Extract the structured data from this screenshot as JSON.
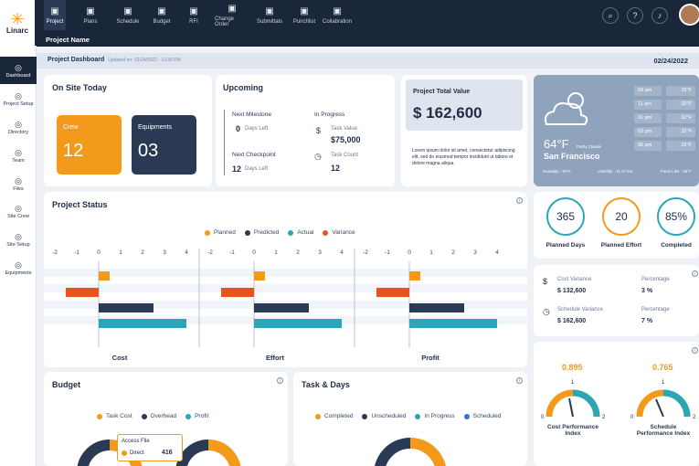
{
  "app": {
    "logo_text": "Linarc",
    "project_label": "Project Name"
  },
  "nav": [
    {
      "label": "Project",
      "icon": "grid-icon"
    },
    {
      "label": "Plans",
      "icon": "plans-icon"
    },
    {
      "label": "Schedule",
      "icon": "schedule-icon"
    },
    {
      "label": "Budget",
      "icon": "budget-icon"
    },
    {
      "label": "RFI",
      "icon": "rfi-icon"
    },
    {
      "label": "Change Order",
      "icon": "change-order-icon"
    },
    {
      "label": "Submittals",
      "icon": "submittals-icon"
    },
    {
      "label": "Punchlist",
      "icon": "punchlist-icon"
    },
    {
      "label": "Collabration",
      "icon": "collaboration-icon"
    }
  ],
  "sidebar": [
    {
      "label": "Dashboard",
      "icon": "gauge-icon"
    },
    {
      "label": "Project Setup",
      "icon": "tools-icon"
    },
    {
      "label": "Directory",
      "icon": "directory-icon"
    },
    {
      "label": "Team",
      "icon": "team-icon"
    },
    {
      "label": "Files",
      "icon": "files-icon"
    },
    {
      "label": "Site Crew",
      "icon": "site-crew-icon"
    },
    {
      "label": "Site Setup",
      "icon": "site-setup-icon"
    },
    {
      "label": "Equipments",
      "icon": "equipments-icon"
    }
  ],
  "header": {
    "title": "Project Dashboard",
    "updated": "Updated on: 02/24/2022 - 10:30 PM",
    "date": "02/24/2022"
  },
  "onsite": {
    "title": "On Site Today",
    "crew_label": "Crew",
    "crew_value": "12",
    "equip_label": "Equipments",
    "equip_value": "03"
  },
  "upcoming": {
    "title": "Upcoming",
    "milestone_label": "Next Milestone",
    "milestone_days": "0",
    "milestone_unit": "Days Left",
    "checkpoint_label": "Next Checkpoint",
    "checkpoint_days": "12",
    "checkpoint_unit": "Days Left",
    "progress_label": "In Progress",
    "task_value_label": "Task Value",
    "task_value": "$75,000",
    "task_count_label": "Task Count",
    "task_count": "12"
  },
  "total": {
    "label": "Project Total Value",
    "value": "$ 162,600",
    "note": "Lorem ipsum dolor sit amet, consectetur adipiscing elit, sed do eiusmod tempor incididunt ut labore et dolore magna aliqua."
  },
  "weather": {
    "temp": "64°F",
    "cond": "Partly Cloude",
    "city": "San Francisco",
    "humidity": "Humidity - 97%",
    "visibility": "Visibility - 11.27 km",
    "feels": "Feels Like : 55°F",
    "hours": [
      {
        "time": "09 am",
        "temp": "32°F"
      },
      {
        "time": "11 am",
        "temp": "32°F"
      },
      {
        "time": "01 pm",
        "temp": "32°F"
      },
      {
        "time": "03 pm",
        "temp": "32°F"
      },
      {
        "time": "05 pm",
        "temp": "32°F"
      }
    ]
  },
  "status": {
    "title": "Project Status",
    "legend": [
      "Planned",
      "Predicted",
      "Actual",
      "Variance"
    ],
    "ticks": [
      "-2",
      "-1",
      "0",
      "1",
      "2",
      "3",
      "4"
    ],
    "groups": [
      "Cost",
      "Effort",
      "Profit"
    ]
  },
  "rings": [
    {
      "value": "365",
      "label": "Planned Days",
      "color": "#2aa7b6",
      "pct": 0.8
    },
    {
      "value": "20",
      "label": "Planned Effort",
      "color": "#f39a1d",
      "pct": 0.85
    },
    {
      "value": "85%",
      "label": "Completed",
      "color": "#2aa7b6",
      "pct": 0.85
    }
  ],
  "variance": {
    "cost_label": "Cost Variance",
    "cost_value": "$ 132,600",
    "pct_label": "Percentage",
    "cost_pct": "3 %",
    "sched_label": "Schedule Variance",
    "sched_value": "$ 162,600",
    "sched_pct": "7 %"
  },
  "perf": {
    "cost_val": "0.895",
    "sched_val": "0.765",
    "one": "1",
    "zero": "0",
    "two": "2",
    "cost_label": "Cost Performance Index",
    "sched_label": "Schedule Performance Index"
  },
  "budget": {
    "title": "Budget",
    "legend": [
      "Task Cost",
      "Overhead",
      "Profit"
    ],
    "tooltip_title": "Access File",
    "tooltip_label": "Direct",
    "tooltip_value": "416"
  },
  "task": {
    "title": "Task & Days",
    "legend": [
      "Completed",
      "Unscheduled",
      "In Progress",
      "Scheduled"
    ]
  },
  "colors": {
    "navy": "#1a2639",
    "orange": "#f39a1d",
    "teal": "#2aa7b6",
    "dark": "#2b3a54",
    "red": "#e8531e"
  },
  "chart_data": {
    "type": "bar",
    "series": [
      "Planned",
      "Predicted",
      "Actual",
      "Variance"
    ],
    "panels": [
      {
        "name": "Cost",
        "values": {
          "Planned": 0.5,
          "Predicted": 2.5,
          "Actual": 4,
          "Variance": -1.5
        }
      },
      {
        "name": "Effort",
        "values": {
          "Planned": 0.5,
          "Predicted": 2.5,
          "Actual": 4,
          "Variance": -1.5
        }
      },
      {
        "name": "Profit",
        "values": {
          "Planned": 0.5,
          "Predicted": 2.5,
          "Actual": 4,
          "Variance": -1.5
        }
      }
    ],
    "xlim": [
      -2,
      4
    ]
  }
}
